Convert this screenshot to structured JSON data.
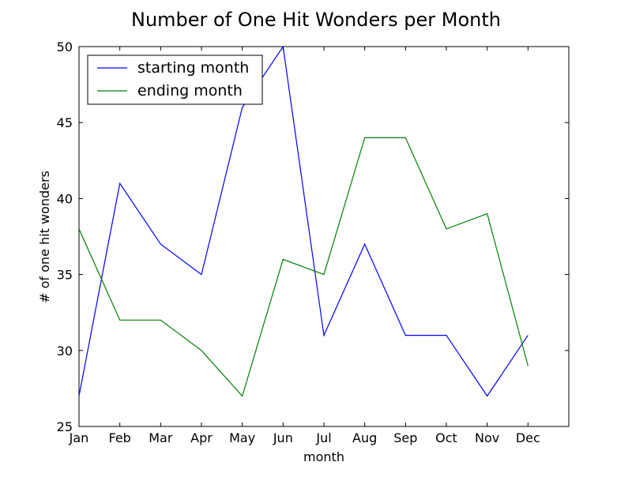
{
  "chart_data": {
    "type": "line",
    "title": "Number of One Hit Wonders per Month",
    "xlabel": "month",
    "ylabel": "# of one hit wonders",
    "categories": [
      "Jan",
      "Feb",
      "Mar",
      "Apr",
      "May",
      "Jun",
      "Jul",
      "Aug",
      "Sep",
      "Oct",
      "Nov",
      "Dec"
    ],
    "xlim": [
      0,
      12
    ],
    "ylim": [
      25,
      50
    ],
    "yticks": [
      25,
      30,
      35,
      40,
      45,
      50
    ],
    "grid": false,
    "legend_position": "top-left",
    "series": [
      {
        "name": "starting month",
        "color": "#0000ff",
        "values": [
          27,
          41,
          37,
          35,
          46,
          50,
          31,
          37,
          31,
          31,
          27,
          31
        ]
      },
      {
        "name": "ending month",
        "color": "#008000",
        "values": [
          38,
          32,
          32,
          30,
          27,
          36,
          35,
          44,
          44,
          38,
          39,
          29
        ]
      }
    ]
  }
}
